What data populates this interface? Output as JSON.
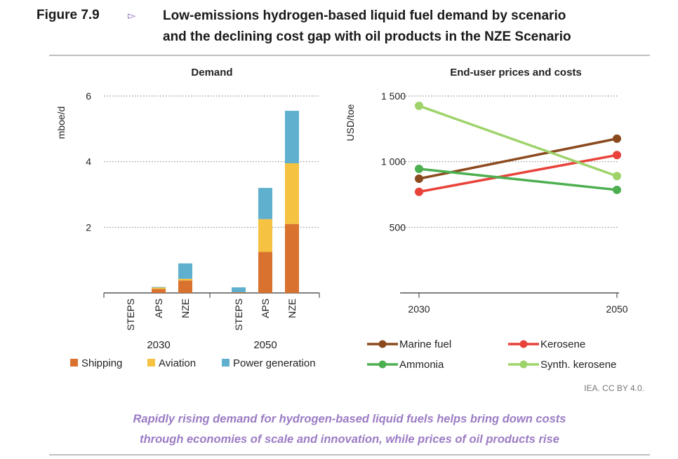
{
  "figure": {
    "number": "Figure 7.9",
    "arrow_icon": "triangle-right-outline",
    "title_line1": "Low-emissions hydrogen-based liquid fuel demand by scenario",
    "title_line2": "and the declining cost gap with oil products in the NZE Scenario",
    "credit": "IEA. CC BY 4.0.",
    "caption_line1": "Rapidly rising demand for hydrogen-based liquid fuels helps bring down costs",
    "caption_line2": "through economies of scale and innovation, while prices of oil products rise",
    "accent_color": "#9b7cc4"
  },
  "chart_data": [
    {
      "type": "bar",
      "stacked": true,
      "title": "Demand",
      "ylabel": "mboe/d",
      "ylim": [
        0,
        6
      ],
      "yticks": [
        2,
        4,
        6
      ],
      "grid": true,
      "groups": [
        {
          "label": "2030",
          "categories": [
            "STEPS",
            "APS",
            "NZE"
          ]
        },
        {
          "label": "2050",
          "categories": [
            "STEPS",
            "APS",
            "NZE"
          ]
        }
      ],
      "categories": [
        "STEPS",
        "APS",
        "NZE",
        "STEPS",
        "APS",
        "NZE"
      ],
      "series": [
        {
          "name": "Shipping",
          "color": "#d9722e",
          "values": [
            0,
            0.12,
            0.38,
            0.02,
            1.25,
            2.1
          ]
        },
        {
          "name": "Aviation",
          "color": "#f5c242",
          "values": [
            0,
            0.05,
            0.05,
            0.0,
            1.0,
            1.85
          ]
        },
        {
          "name": "Power generation",
          "color": "#5fb0cf",
          "values": [
            0,
            0.01,
            0.47,
            0.15,
            0.95,
            1.6
          ]
        }
      ],
      "legend": "bottom"
    },
    {
      "type": "line",
      "title": "End-user prices and costs",
      "ylabel": "USD/toe",
      "x": [
        "2030",
        "2050"
      ],
      "ylim": [
        0,
        1500
      ],
      "yticks": [
        500,
        1000,
        1500
      ],
      "ytick_labels": [
        "500",
        "1 000",
        "1 500"
      ],
      "grid": true,
      "series": [
        {
          "name": "Marine fuel",
          "color": "#8b4a1e",
          "values": [
            870,
            1175
          ]
        },
        {
          "name": "Kerosene",
          "color": "#e8423a",
          "values": [
            770,
            1050
          ]
        },
        {
          "name": "Ammonia",
          "color": "#4caf50",
          "values": [
            945,
            785
          ]
        },
        {
          "name": "Synth. kerosene",
          "color": "#9ed36a",
          "values": [
            1425,
            890
          ]
        }
      ],
      "legend": "bottom"
    }
  ]
}
